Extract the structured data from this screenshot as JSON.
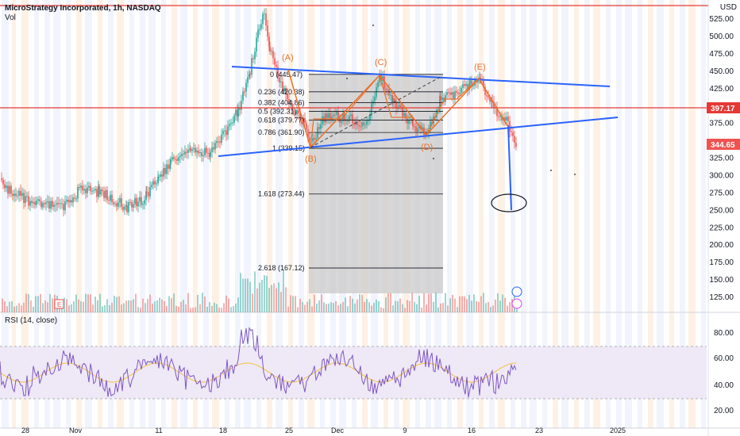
{
  "header": {
    "title": "MicroStrategy Incorporated, 1h, NASDAQ",
    "volume_label": "Vol",
    "currency": "USD"
  },
  "price_axis": [
    "525.00",
    "500.00",
    "475.00",
    "450.00",
    "425.00",
    "375.00",
    "325.00",
    "300.00",
    "275.00",
    "250.00",
    "225.00",
    "200.00",
    "175.00",
    "150.00",
    "125.00"
  ],
  "price_tags": {
    "resistance": "397.17",
    "last": "344.65"
  },
  "rsi": {
    "label": "RSI (14, close)",
    "ticks": [
      "80.00",
      "60.00",
      "40.00",
      "20.00"
    ]
  },
  "time_axis": [
    "28",
    "Nov",
    "11",
    "18",
    "25",
    "Dec",
    "9",
    "16",
    "23",
    "2025"
  ],
  "fib_levels": [
    {
      "ratio": "0",
      "price": "(445.47)"
    },
    {
      "ratio": "0.236",
      "price": "(420.38)"
    },
    {
      "ratio": "0.382",
      "price": "(404.86)"
    },
    {
      "ratio": "0.5",
      "price": "(392.31)"
    },
    {
      "ratio": "0.618",
      "price": "(379.77)"
    },
    {
      "ratio": "0.786",
      "price": "(361.90)"
    },
    {
      "ratio": "1",
      "price": "(339.15)"
    },
    {
      "ratio": "1.618",
      "price": "(273.44)"
    },
    {
      "ratio": "2.618",
      "price": "(167.12)"
    }
  ],
  "wave_labels": [
    "(A)",
    "(B)",
    "(C)",
    "(D)",
    "(E)"
  ],
  "event_marker": "E",
  "colors": {
    "up": "#26a69a",
    "down": "#ef5350",
    "pattern": "#e8702a",
    "trendline": "#2962ff",
    "resistance": "#e53935",
    "rsi": "#7e57c2"
  }
}
